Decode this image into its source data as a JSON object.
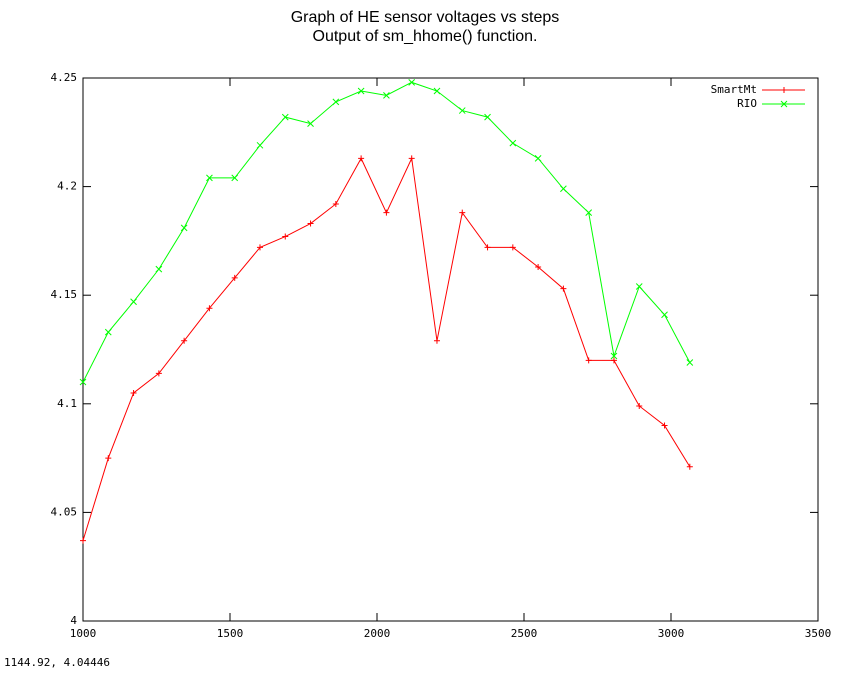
{
  "chart_data": {
    "type": "line",
    "title": "Graph of HE sensor voltages vs steps",
    "subtitle": "Output of sm_hhome() function.",
    "annotation": "1144.92,  4.04446",
    "x": [
      1000,
      1086,
      1172,
      1258,
      1344,
      1430,
      1516,
      1602,
      1688,
      1774,
      1860,
      1946,
      2032,
      2118,
      2204,
      2290,
      2376,
      2462,
      2548,
      2634,
      2720,
      2806,
      2892,
      2978,
      3064
    ],
    "series": [
      {
        "name": "SmartMt",
        "color": "#ff0000",
        "marker": "+",
        "values": [
          4.037,
          4.075,
          4.105,
          4.114,
          4.129,
          4.144,
          4.158,
          4.172,
          4.177,
          4.183,
          4.192,
          4.213,
          4.188,
          4.213,
          4.129,
          4.188,
          4.172,
          4.172,
          4.163,
          4.153,
          4.12,
          4.12,
          4.099,
          4.09,
          4.071
        ]
      },
      {
        "name": "RIO",
        "color": "#00ff00",
        "marker": "x",
        "values": [
          4.11,
          4.133,
          4.147,
          4.162,
          4.181,
          4.204,
          4.204,
          4.219,
          4.232,
          4.229,
          4.239,
          4.244,
          4.242,
          4.248,
          4.244,
          4.235,
          4.232,
          4.22,
          4.213,
          4.199,
          4.188,
          4.122,
          4.154,
          4.141,
          4.119
        ]
      }
    ],
    "xlim": [
      1000,
      3500
    ],
    "xticks": [
      1000,
      1500,
      2000,
      2500,
      3000,
      3500
    ],
    "ylim": [
      4,
      4.25
    ],
    "yticks": [
      4,
      4.05,
      4.1,
      4.15,
      4.2,
      4.25
    ],
    "grid": false,
    "legend": "top-right"
  }
}
